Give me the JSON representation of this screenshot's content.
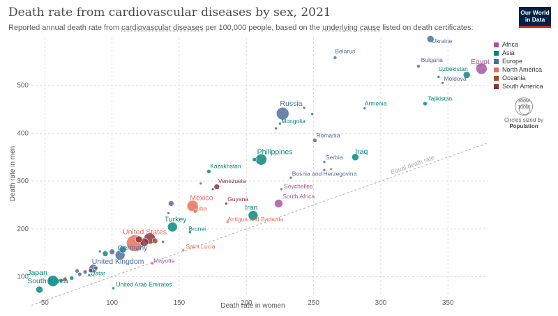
{
  "header": {
    "title": "Death rate from cardiovascular diseases by sex, 2021",
    "subtitle_parts": [
      "Reported annual death rate from ",
      "cardiovascular diseases",
      " per 100,000 people, based on the ",
      "underlying cause",
      " listed on death certificates."
    ],
    "logo_line1": "Our World",
    "logo_line2": "in Data"
  },
  "legend": {
    "items": [
      {
        "label": "Africa",
        "color": "#a2559c"
      },
      {
        "label": "Asia",
        "color": "#00847e"
      },
      {
        "label": "Europe",
        "color": "#4c6a9c"
      },
      {
        "label": "North America",
        "color": "#e56e5a"
      },
      {
        "label": "Oceania",
        "color": "#9a5129"
      },
      {
        "label": "South America",
        "color": "#883039"
      }
    ],
    "size_big": "300M",
    "size_small": "100M",
    "size_caption": "Circles sized by",
    "size_caption_bold": "Population"
  },
  "chart_data": {
    "type": "scatter",
    "title": "Death rate from cardiovascular diseases by sex, 2021",
    "xlabel": "Death rate in women",
    "ylabel": "Death rate in men",
    "xlim": [
      40,
      380
    ],
    "ylim": [
      60,
      600
    ],
    "xticks": [
      50,
      100,
      150,
      200,
      250,
      300,
      350
    ],
    "yticks": [
      100,
      200,
      300,
      400,
      500
    ],
    "grid": true,
    "legend_position": "top-right",
    "equal_line_label": "Equal death rate",
    "points": [
      {
        "name": "Ukraine",
        "x": 337,
        "y": 597,
        "region": "Europe",
        "r": 5
      },
      {
        "name": "Egypt",
        "x": 375,
        "y": 535,
        "region": "Africa",
        "r": 8
      },
      {
        "name": "Uzbekistan",
        "x": 364,
        "y": 522,
        "region": "Asia",
        "r": 5
      },
      {
        "name": "Belarus",
        "x": 266,
        "y": 558,
        "region": "Europe",
        "r": 2.5
      },
      {
        "name": "Bulgaria",
        "x": 328,
        "y": 540,
        "region": "Europe",
        "r": 2.5
      },
      {
        "name": "Moldova",
        "x": 346,
        "y": 505,
        "region": "Europe",
        "r": 2
      },
      {
        "name": "",
        "x": 343,
        "y": 518,
        "region": "Asia",
        "r": 2
      },
      {
        "name": "Tajikistan",
        "x": 333,
        "y": 462,
        "region": "Asia",
        "r": 3
      },
      {
        "name": "Armenia",
        "x": 288,
        "y": 452,
        "region": "Asia",
        "r": 2
      },
      {
        "name": "Russia",
        "x": 227,
        "y": 441,
        "region": "Europe",
        "r": 9
      },
      {
        "name": "",
        "x": 243,
        "y": 453,
        "region": "Europe",
        "r": 2
      },
      {
        "name": "",
        "x": 249,
        "y": 440,
        "region": "Asia",
        "r": 2
      },
      {
        "name": "Mongolia",
        "x": 225,
        "y": 420,
        "region": "Asia",
        "r": 2
      },
      {
        "name": "",
        "x": 222,
        "y": 410,
        "region": "Asia",
        "r": 2
      },
      {
        "name": "Romania",
        "x": 251,
        "y": 385,
        "region": "Europe",
        "r": 3
      },
      {
        "name": "Philippines",
        "x": 211,
        "y": 345,
        "region": "Asia",
        "r": 8
      },
      {
        "name": "",
        "x": 206,
        "y": 345,
        "region": "Asia",
        "r": 3
      },
      {
        "name": "Iraq",
        "x": 281,
        "y": 350,
        "region": "Asia",
        "r": 5
      },
      {
        "name": "Serbia",
        "x": 258,
        "y": 340,
        "region": "Europe",
        "r": 2
      },
      {
        "name": "Bosnia and Herzegovina",
        "x": 233,
        "y": 307,
        "region": "Europe",
        "r": 2
      },
      {
        "name": "",
        "x": 258,
        "y": 323,
        "region": "Europe",
        "r": 2
      },
      {
        "name": "",
        "x": 263,
        "y": 325,
        "region": "North America",
        "r": 2
      },
      {
        "name": "Kazakhstan",
        "x": 172,
        "y": 320,
        "region": "Asia",
        "r": 3
      },
      {
        "name": "",
        "x": 175,
        "y": 283,
        "region": "Asia",
        "r": 2
      },
      {
        "name": "",
        "x": 166,
        "y": 295,
        "region": "Europe",
        "r": 2
      },
      {
        "name": "Venezuela",
        "x": 178,
        "y": 288,
        "region": "South America",
        "r": 4
      },
      {
        "name": "Seychelles",
        "x": 226,
        "y": 283,
        "region": "Africa",
        "r": 2
      },
      {
        "name": "South Africa",
        "x": 224,
        "y": 253,
        "region": "Africa",
        "r": 6
      },
      {
        "name": "Guyana",
        "x": 185,
        "y": 253,
        "region": "South America",
        "r": 2
      },
      {
        "name": "Mexico",
        "x": 160,
        "y": 248,
        "region": "North America",
        "r": 8
      },
      {
        "name": "",
        "x": 144,
        "y": 253,
        "region": "Europe",
        "r": 4
      },
      {
        "name": "Cuba",
        "x": 162,
        "y": 237,
        "region": "North America",
        "r": 3
      },
      {
        "name": "",
        "x": 142,
        "y": 233,
        "region": "Europe",
        "r": 2
      },
      {
        "name": "Iran",
        "x": 205,
        "y": 228,
        "region": "Asia",
        "r": 7
      },
      {
        "name": "Antigua and Barbuda",
        "x": 186,
        "y": 215,
        "region": "North America",
        "r": 2
      },
      {
        "name": "Turkey",
        "x": 145,
        "y": 204,
        "region": "Asia",
        "r": 7
      },
      {
        "name": "Brunei",
        "x": 158,
        "y": 193,
        "region": "Asia",
        "r": 2
      },
      {
        "name": "United States",
        "x": 117,
        "y": 170,
        "region": "North America",
        "r": 12
      },
      {
        "name": "",
        "x": 132,
        "y": 175,
        "region": "Oceania",
        "r": 4
      },
      {
        "name": "",
        "x": 128,
        "y": 180,
        "region": "South America",
        "r": 8
      },
      {
        "name": "",
        "x": 124,
        "y": 172,
        "region": "South America",
        "r": 6
      },
      {
        "name": "",
        "x": 120,
        "y": 178,
        "region": "South America",
        "r": 5
      },
      {
        "name": "",
        "x": 108,
        "y": 157,
        "region": "Asia",
        "r": 5
      },
      {
        "name": "",
        "x": 100,
        "y": 152,
        "region": "Europe",
        "r": 4
      },
      {
        "name": "",
        "x": 138,
        "y": 173,
        "region": "Asia",
        "r": 2
      },
      {
        "name": "Germany",
        "x": 106,
        "y": 145,
        "region": "Europe",
        "r": 7
      },
      {
        "name": "",
        "x": 95,
        "y": 148,
        "region": "Asia",
        "r": 4
      },
      {
        "name": "",
        "x": 91,
        "y": 153,
        "region": "Europe",
        "r": 2
      },
      {
        "name": "Saint Lucia",
        "x": 153,
        "y": 155,
        "region": "North America",
        "r": 2
      },
      {
        "name": "Mayotte",
        "x": 130,
        "y": 128,
        "region": "Africa",
        "r": 2
      },
      {
        "name": "United Kingdom",
        "x": 86,
        "y": 117,
        "region": "Europe",
        "r": 6
      },
      {
        "name": "",
        "x": 80,
        "y": 110,
        "region": "Europe",
        "r": 3
      },
      {
        "name": "",
        "x": 76,
        "y": 105,
        "region": "Europe",
        "r": 3
      },
      {
        "name": "",
        "x": 74,
        "y": 112,
        "region": "Europe",
        "r": 3
      },
      {
        "name": "Qatar",
        "x": 83,
        "y": 103,
        "region": "Asia",
        "r": 2
      },
      {
        "name": "",
        "x": 88,
        "y": 118,
        "region": "Europe",
        "r": 3
      },
      {
        "name": "",
        "x": 84,
        "y": 113,
        "region": "South America",
        "r": 3
      },
      {
        "name": "",
        "x": 70,
        "y": 97,
        "region": "Asia",
        "r": 3
      },
      {
        "name": "",
        "x": 65,
        "y": 95,
        "region": "Oceania",
        "r": 3
      },
      {
        "name": "",
        "x": 62,
        "y": 92,
        "region": "Europe",
        "r": 3
      },
      {
        "name": "Japan",
        "x": 56,
        "y": 91,
        "region": "Asia",
        "r": 8
      },
      {
        "name": "South Korea",
        "x": 46,
        "y": 73,
        "region": "Asia",
        "r": 5
      },
      {
        "name": "United Arab Emirates",
        "x": 101,
        "y": 76,
        "region": "Asia",
        "r": 2
      }
    ],
    "labels": [
      {
        "text": "Ukraine",
        "x": 338,
        "y": 588,
        "region": "Europe"
      },
      {
        "text": "Egypt",
        "x": 367,
        "y": 545,
        "region": "Africa",
        "big": true
      },
      {
        "text": "Uzbekistan",
        "x": 343,
        "y": 530,
        "region": "Asia"
      },
      {
        "text": "Belarus",
        "x": 266,
        "y": 567,
        "region": "Europe"
      },
      {
        "text": "Bulgaria",
        "x": 330,
        "y": 549,
        "region": "Europe"
      },
      {
        "text": "Moldova",
        "x": 347,
        "y": 510,
        "region": "Europe"
      },
      {
        "text": "Tajikistan",
        "x": 335,
        "y": 468,
        "region": "Asia"
      },
      {
        "text": "Armenia",
        "x": 288,
        "y": 458,
        "region": "Asia"
      },
      {
        "text": "Russia",
        "x": 225,
        "y": 457,
        "region": "Europe",
        "big": true
      },
      {
        "text": "Mongolia",
        "x": 226,
        "y": 421,
        "region": "Asia"
      },
      {
        "text": "Romania",
        "x": 252,
        "y": 391,
        "region": "Europe"
      },
      {
        "text": "Philippines",
        "x": 208,
        "y": 356,
        "region": "Asia",
        "big": true
      },
      {
        "text": "Iraq",
        "x": 281,
        "y": 357,
        "region": "Asia",
        "big": true
      },
      {
        "text": "Serbia",
        "x": 259,
        "y": 345,
        "region": "Europe"
      },
      {
        "text": "Bosnia and Herzegovina",
        "x": 234,
        "y": 311,
        "region": "Europe"
      },
      {
        "text": "Kazakhstan",
        "x": 173,
        "y": 327,
        "region": "Asia"
      },
      {
        "text": "Venezuela",
        "x": 179,
        "y": 296,
        "region": "South America"
      },
      {
        "text": "Seychelles",
        "x": 228,
        "y": 285,
        "region": "Africa"
      },
      {
        "text": "South Africa",
        "x": 227,
        "y": 264,
        "region": "Africa"
      },
      {
        "text": "Guyana",
        "x": 186,
        "y": 258,
        "region": "South America"
      },
      {
        "text": "Mexico",
        "x": 158,
        "y": 260,
        "region": "North America",
        "big": true
      },
      {
        "text": "Cuba",
        "x": 160,
        "y": 238,
        "region": "North America"
      },
      {
        "text": "Iran",
        "x": 199,
        "y": 240,
        "region": "Asia",
        "big": true
      },
      {
        "text": "Antigua and Barbuda",
        "x": 186,
        "y": 216,
        "region": "North America"
      },
      {
        "text": "Turkey",
        "x": 139,
        "y": 215,
        "region": "Asia",
        "big": true
      },
      {
        "text": "Brunei",
        "x": 157,
        "y": 196,
        "region": "Asia"
      },
      {
        "text": "United States",
        "x": 108,
        "y": 189,
        "region": "North America",
        "big": true
      },
      {
        "text": "Germany",
        "x": 104,
        "y": 155,
        "region": "Europe",
        "big": true
      },
      {
        "text": "Saint Lucia",
        "x": 155,
        "y": 159,
        "region": "North America"
      },
      {
        "text": "Mayotte",
        "x": 131,
        "y": 129,
        "region": "Africa"
      },
      {
        "text": "United Kingdom",
        "x": 85,
        "y": 127,
        "region": "Europe",
        "big": true
      },
      {
        "text": "Qatar",
        "x": 84,
        "y": 103,
        "region": "Asia"
      },
      {
        "text": "Japan",
        "x": 37,
        "y": 104,
        "region": "Asia",
        "big": true
      },
      {
        "text": "South Korea",
        "x": 37,
        "y": 86,
        "region": "Asia",
        "big": true
      },
      {
        "text": "United Arab Emirates",
        "x": 103,
        "y": 80,
        "region": "Asia"
      }
    ]
  }
}
